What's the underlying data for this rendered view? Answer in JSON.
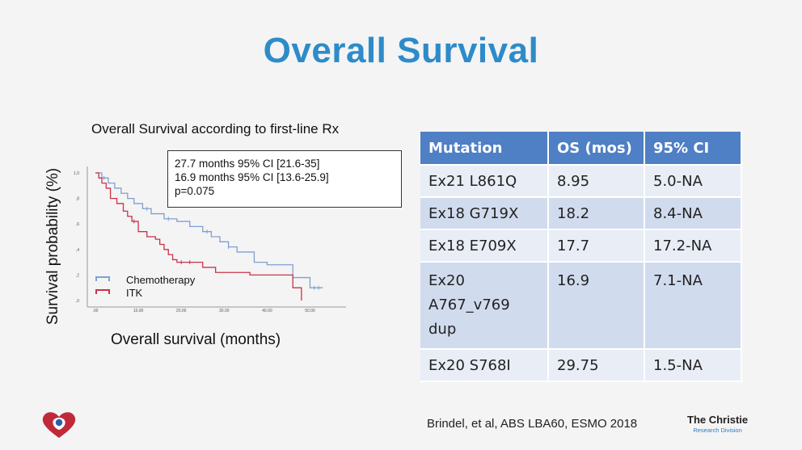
{
  "slide": {
    "title": "Overall Survival"
  },
  "chart_data": {
    "type": "line",
    "title": "Overall Survival according to first-line Rx",
    "xlabel": "Overall survival (months)",
    "ylabel": "Survival probability (%)",
    "xlim": [
      0,
      55
    ],
    "ylim": [
      0,
      1.0
    ],
    "xticks": [
      0,
      10,
      20,
      30,
      40,
      50
    ],
    "xtick_labels": [
      ".00",
      "10.00",
      "20.00",
      "30.00",
      "40.00",
      "50.00"
    ],
    "yticks": [
      0,
      0.2,
      0.4,
      0.6,
      0.8,
      1.0
    ],
    "ytick_labels": [
      ",0",
      ",2",
      ",4",
      ",6",
      ",8",
      "1,0"
    ],
    "annotation": [
      "27.7 months 95% CI [21.6-35]",
      "16.9 months 95% CI [13.6-25.9]",
      "p=0.075"
    ],
    "series": [
      {
        "name": "Chemotherapy",
        "color": "#7f9fd0",
        "x": [
          0,
          1.5,
          3,
          4.5,
          6,
          7.5,
          9,
          11,
          13,
          16,
          19,
          22,
          25,
          27,
          29,
          31,
          33,
          37,
          40,
          46,
          50,
          53
        ],
        "y": [
          1.0,
          0.96,
          0.92,
          0.88,
          0.84,
          0.8,
          0.76,
          0.72,
          0.68,
          0.64,
          0.62,
          0.58,
          0.54,
          0.5,
          0.46,
          0.42,
          0.38,
          0.3,
          0.28,
          0.18,
          0.1,
          0.1
        ],
        "censor_x": [
          2,
          12,
          17,
          26,
          31,
          51,
          52
        ]
      },
      {
        "name": "ITK",
        "color": "#c8334a",
        "x": [
          0,
          0.8,
          1.5,
          2.5,
          3.5,
          5,
          6.5,
          7.5,
          8.5,
          10,
          12,
          14,
          15,
          16,
          17,
          18,
          19,
          22,
          25,
          28,
          36,
          46,
          48
        ],
        "y": [
          1.0,
          0.96,
          0.92,
          0.88,
          0.8,
          0.76,
          0.7,
          0.66,
          0.62,
          0.54,
          0.5,
          0.48,
          0.44,
          0.4,
          0.36,
          0.32,
          0.3,
          0.3,
          0.26,
          0.22,
          0.2,
          0.1,
          0.0
        ],
        "censor_x": [
          9,
          20,
          22
        ]
      }
    ]
  },
  "table": {
    "headers": [
      "Mutation",
      "OS (mos)",
      "95% CI"
    ],
    "rows": [
      [
        "Ex21 L861Q",
        "8.95",
        "5.0-NA"
      ],
      [
        "Ex18 G719X",
        "18.2",
        "8.4-NA"
      ],
      [
        "Ex18 E709X",
        "17.7",
        "17.2-NA"
      ],
      [
        "Ex20 A767_v769 dup",
        "16.9",
        "7.1-NA"
      ],
      [
        "Ex20 S768I",
        "29.75",
        "1.5-NA"
      ]
    ],
    "row4_lines": [
      "Ex20",
      "A767_v769",
      "dup"
    ]
  },
  "footer": {
    "citation": "Brindel, et al, ABS LBA60, ESMO 2018",
    "brand_name": "The Christie",
    "brand_sub": "Research Division"
  }
}
